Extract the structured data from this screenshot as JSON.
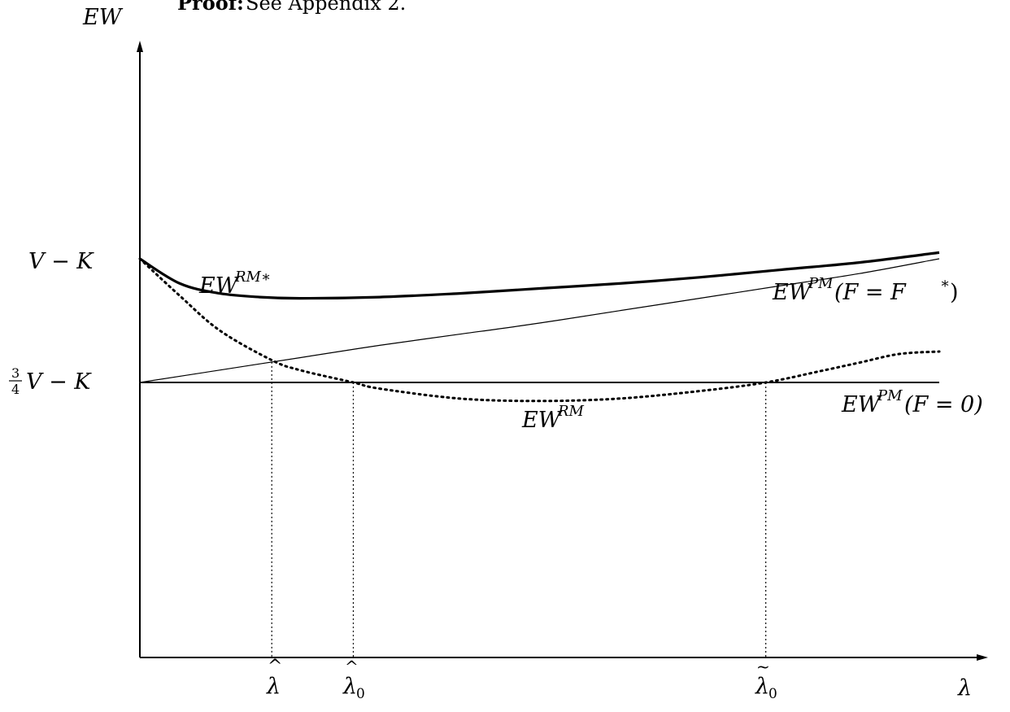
{
  "header": {
    "proof_label": "Proof:",
    "proof_text": "See Appendix 2."
  },
  "chart_data": {
    "type": "line",
    "title": "",
    "xlabel": "λ",
    "ylabel": "EW",
    "grid": false,
    "legend": "none",
    "y_tick_labels": [
      "V − K",
      "¾V − K"
    ],
    "x_marker_labels": [
      "λ̂ (hat)",
      "λ̂₀",
      "λ̃₀"
    ],
    "series": [
      {
        "name": "EW^{RM*}",
        "style": "thick solid",
        "x": [
          0.0,
          0.05,
          0.1,
          0.15,
          0.2,
          0.3,
          0.4,
          0.5,
          0.6,
          0.7,
          0.8,
          0.9,
          1.0
        ],
        "y": [
          1.0,
          0.8,
          0.72,
          0.69,
          0.68,
          0.69,
          0.72,
          0.76,
          0.8,
          0.85,
          0.91,
          0.97,
          1.05
        ]
      },
      {
        "name": "EW^{PM}(F = F*)",
        "style": "thin solid",
        "x": [
          0.0,
          0.1,
          0.2,
          0.3,
          0.4,
          0.5,
          0.6,
          0.7,
          0.8,
          0.9,
          1.0
        ],
        "y": [
          0.0,
          0.1,
          0.2,
          0.3,
          0.39,
          0.48,
          0.58,
          0.68,
          0.78,
          0.88,
          1.0
        ]
      },
      {
        "name": "EW^{RM}",
        "style": "dotted",
        "x": [
          0.0,
          0.05,
          0.1,
          0.165,
          0.2,
          0.267,
          0.3,
          0.4,
          0.5,
          0.6,
          0.7,
          0.783,
          0.85,
          0.9,
          0.95,
          1.0
        ],
        "y": [
          1.0,
          0.7,
          0.42,
          0.18,
          0.1,
          0.0,
          -0.05,
          -0.13,
          -0.15,
          -0.13,
          -0.07,
          0.0,
          0.09,
          0.16,
          0.23,
          0.25
        ]
      },
      {
        "name": "EW^{PM}(F = 0)",
        "style": "thin solid",
        "x": [
          0.0,
          1.0
        ],
        "y": [
          0.0,
          0.0
        ]
      }
    ],
    "labels": {
      "y_axis": "EW",
      "x_axis": "λ",
      "y_vk": "V − K",
      "y_34_frac_num": "3",
      "y_34_frac_den": "4",
      "y_34_rest": "V − K",
      "ew_rm_star_base": "EW",
      "ew_rm_star_sup": "RM∗",
      "ew_pm_star_base": "EW",
      "ew_pm_star_sup": "PM",
      "ew_pm_star_arg": "(F = F",
      "ew_pm_star_arg_sup": "∗",
      "ew_pm_star_close": ")",
      "ew_rm_base": "EW",
      "ew_rm_sup": "RM",
      "ew_pm0_base": "EW",
      "ew_pm0_sup": "PM",
      "ew_pm0_arg": "(F = 0)",
      "lam_hat": "λ",
      "lam_hat_accent": "^",
      "lam_hat0": "λ",
      "lam_hat0_accent": "^",
      "lam_hat0_sub": "0",
      "lam_tilde0": "λ",
      "lam_tilde0_accent": "~",
      "lam_tilde0_sub": "0"
    }
  }
}
